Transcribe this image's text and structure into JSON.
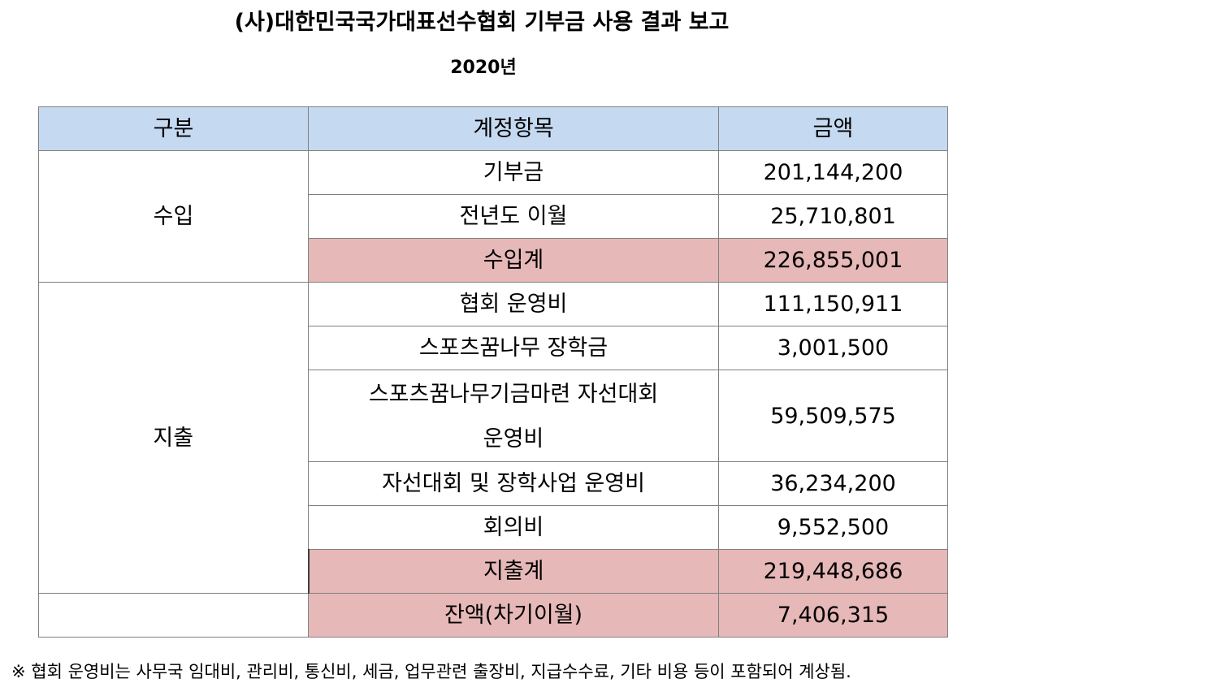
{
  "title": "(사)대한민국국가대표선수협회 기부금 사용 결과 보고",
  "year": "2020년",
  "table": {
    "headers": [
      "구분",
      "계정항목",
      "금액"
    ],
    "income": {
      "category": "수입",
      "rows": [
        {
          "item": "기부금",
          "amount": "201,144,200"
        },
        {
          "item": "전년도 이월",
          "amount": "25,710,801"
        }
      ],
      "total": {
        "item": "수입계",
        "amount": "226,855,001"
      }
    },
    "expense": {
      "category": "지출",
      "rows": [
        {
          "item": "협회 운영비",
          "amount": "111,150,911"
        },
        {
          "item": "스포츠꿈나무 장학금",
          "amount": "3,001,500"
        },
        {
          "item_line1": "스포츠꿈나무기금마련 자선대회",
          "item_line2": "운영비",
          "amount": "59,509,575"
        },
        {
          "item": "자선대회 및 장학사업 운영비",
          "amount": "36,234,200"
        },
        {
          "item": "회의비",
          "amount": "9,552,500"
        }
      ],
      "total": {
        "item": "지출계",
        "amount": "219,448,686"
      }
    },
    "balance": {
      "category": "",
      "item": "잔액(차기이월)",
      "amount": "7,406,315"
    }
  },
  "colors": {
    "header_bg": "#c5d9f1",
    "total_bg": "#e6b8b7",
    "border": "#808080"
  },
  "footnote": "※ 협회 운영비는 사무국 임대비, 관리비, 통신비, 세금, 업무관련 출장비, 지급수수료, 기타 비용 등이 포함되어 계상됨."
}
